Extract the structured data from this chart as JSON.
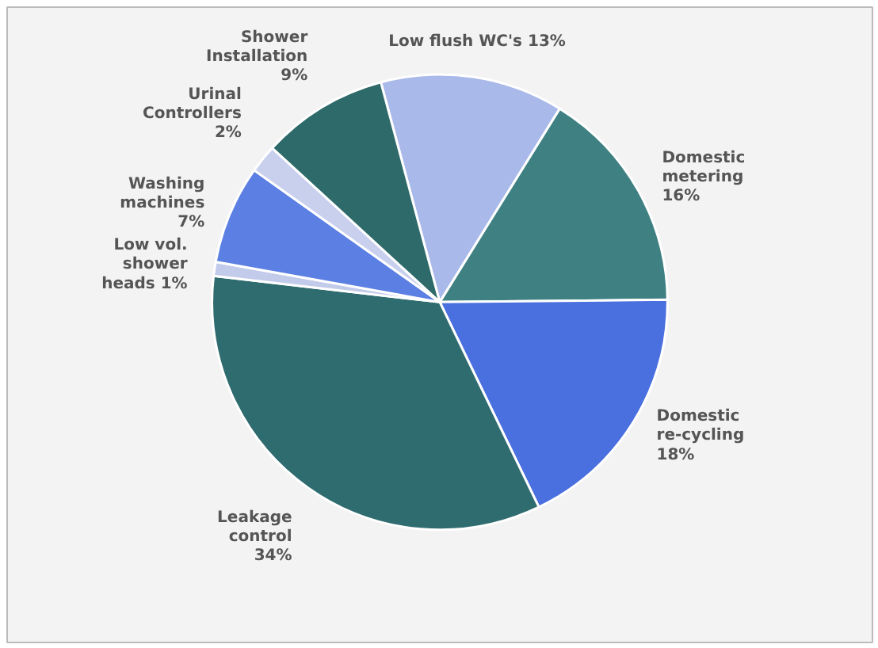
{
  "chart_data": {
    "type": "pie",
    "categories": [
      "Low flush WC's",
      "Domestic metering",
      "Domestic re-cycling",
      "Leakage control",
      "Low vol. shower heads",
      "Washing machines",
      "Urinal Controllers",
      "Shower Installation"
    ],
    "values": [
      13,
      16,
      18,
      34,
      1,
      7,
      2,
      9
    ],
    "value_labels": [
      "13%",
      "16%",
      "18%",
      "34%",
      "1%",
      "7%",
      "2%",
      "9%"
    ],
    "colors": [
      "#a9b9ea",
      "#3f8082",
      "#4a6fdf",
      "#2f6c70",
      "#c3cbea",
      "#5b7fe2",
      "#c8d0ee",
      "#2e6a6a"
    ]
  }
}
